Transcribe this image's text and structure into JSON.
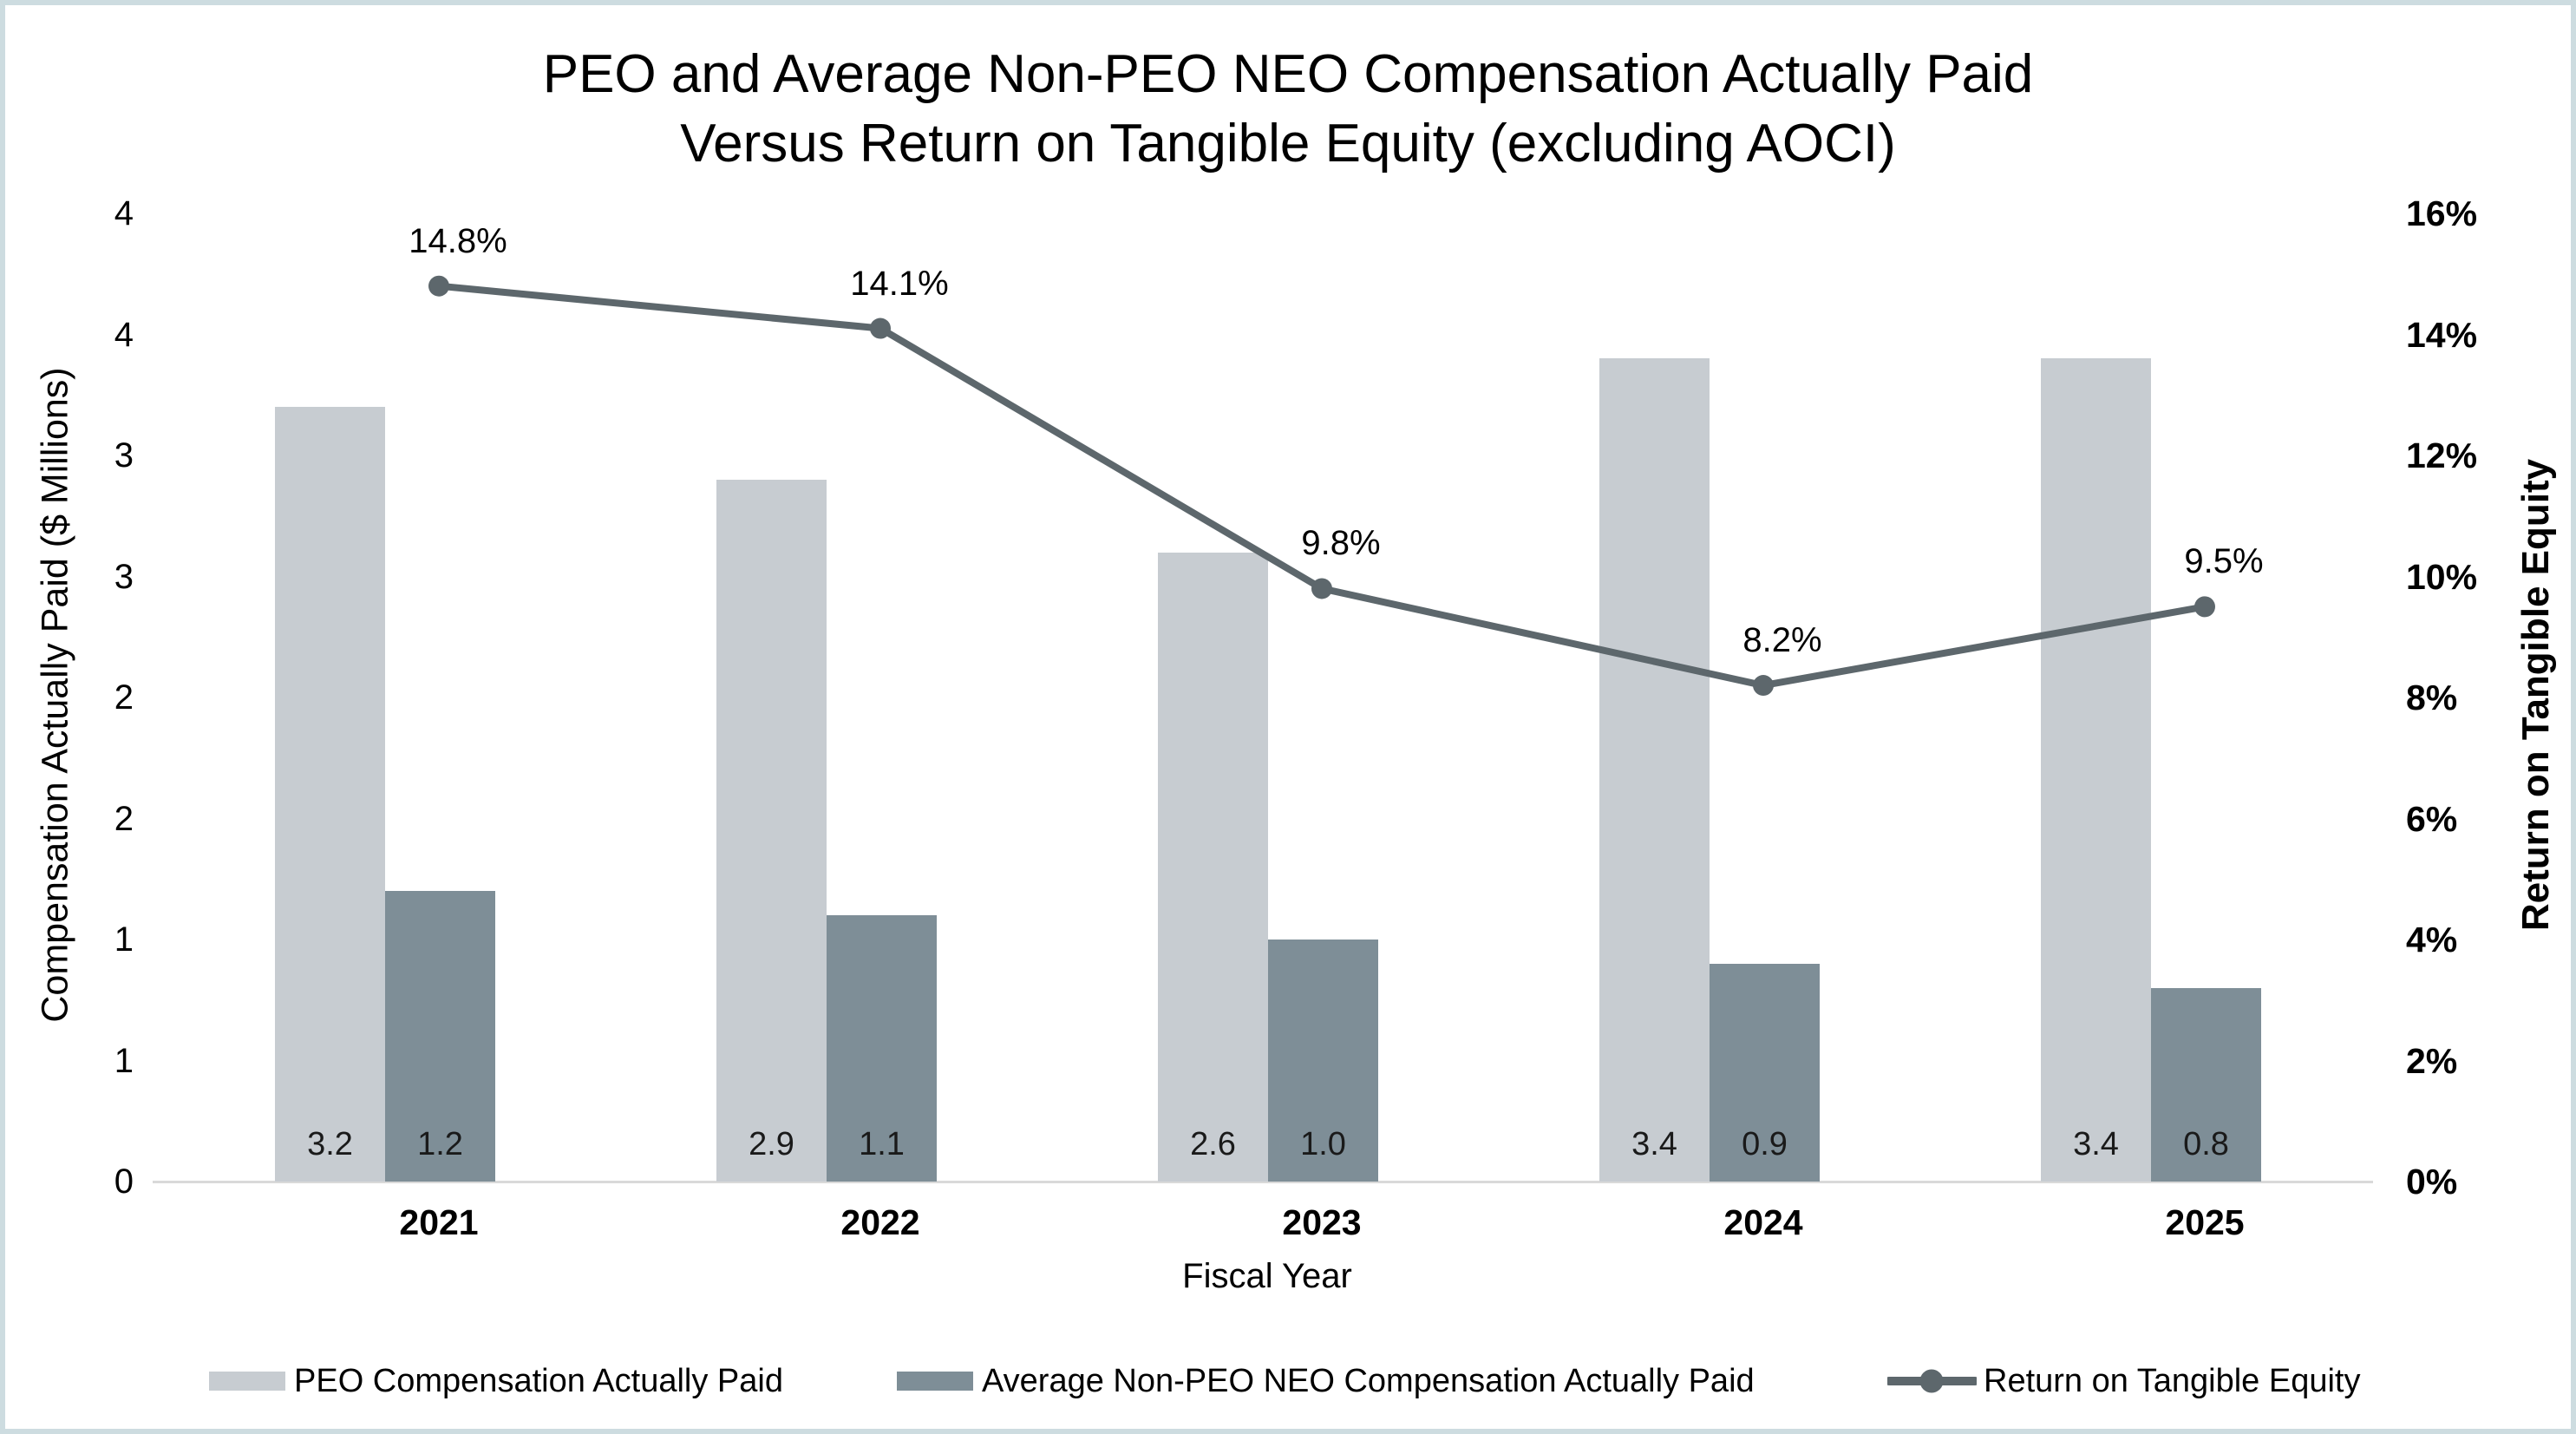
{
  "frame": {
    "border_color": "#cddce0",
    "background": "#ffffff"
  },
  "title": {
    "line1": "PEO and Average Non-PEO NEO Compensation Actually Paid",
    "line2": "Versus Return on Tangible Equity (excluding AOCI)"
  },
  "chart_data": {
    "type": "combo",
    "subtypes": [
      "bar",
      "bar",
      "line"
    ],
    "title": "PEO and Average Non-PEO NEO Compensation Actually Paid Versus Return on Tangible Equity (excluding AOCI)",
    "categories": [
      "2021",
      "2022",
      "2023",
      "2024",
      "2025"
    ],
    "series": [
      {
        "name": "PEO Compensation Actually Paid",
        "type": "bar",
        "axis": "left",
        "color": "#c7ccd1",
        "values": [
          3.2,
          2.9,
          2.6,
          3.4,
          3.4
        ],
        "data_labels": [
          "3.2",
          "2.9",
          "2.6",
          "3.4",
          "3.4"
        ]
      },
      {
        "name": "Average Non-PEO NEO Compensation Actually Paid",
        "type": "bar",
        "axis": "left",
        "color": "#7e8e97",
        "values": [
          1.2,
          1.1,
          1.0,
          0.9,
          0.8
        ],
        "data_labels": [
          "1.2",
          "1.1",
          "1.0",
          "0.9",
          "0.8"
        ]
      },
      {
        "name": "Return on Tangible Equity",
        "type": "line",
        "axis": "right",
        "color": "#5d676c",
        "values": [
          14.8,
          14.1,
          9.8,
          8.2,
          9.5
        ],
        "data_labels": [
          "14.8%",
          "14.1%",
          "9.8%",
          "8.2%",
          "9.5%"
        ]
      }
    ],
    "xlabel": "Fiscal Year",
    "left_axis": {
      "title": "Compensation Actually Paid ($ Millions)",
      "tick_labels_top_to_bottom": [
        "4",
        "4",
        "3",
        "3",
        "2",
        "2",
        "1",
        "1",
        "0"
      ],
      "min": 0,
      "max": 4
    },
    "right_axis": {
      "title": "Return on Tangible Equity",
      "tick_labels_top_to_bottom": [
        "16%",
        "14%",
        "12%",
        "10%",
        "8%",
        "6%",
        "4%",
        "2%",
        "0%"
      ],
      "min": 0,
      "max": 16
    },
    "legend_position": "bottom",
    "grid": false,
    "baseline_color": "#d9d9d9"
  }
}
